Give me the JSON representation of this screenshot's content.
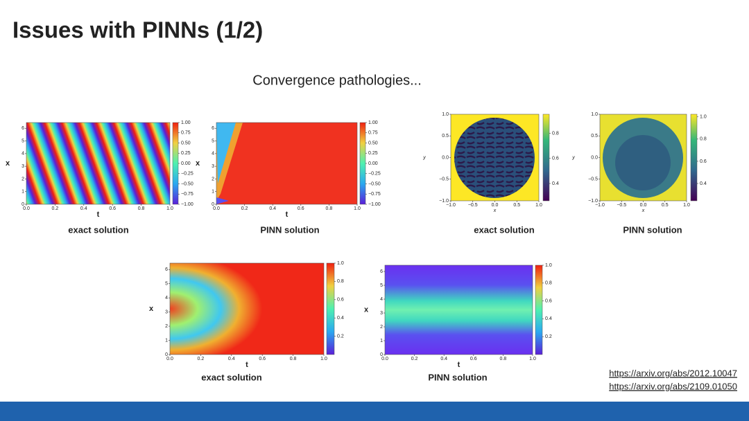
{
  "header": {
    "title": "Issues with PINNs (1/2)",
    "subtitle": "Convergence pathologies..."
  },
  "panels": [
    {
      "caption": "exact solution",
      "xlabel": "t",
      "ylabel": "x",
      "xticks": [
        "0.0",
        "0.2",
        "0.4",
        "0.6",
        "0.8",
        "1.0"
      ],
      "yticks": [
        "0",
        "1",
        "2",
        "3",
        "4",
        "5",
        "6"
      ],
      "cbticks": [
        "−1.00",
        "−0.75",
        "−0.50",
        "−0.25",
        "0.00",
        "0.25",
        "0.50",
        "0.75",
        "1.00"
      ]
    },
    {
      "caption": "PINN solution",
      "xlabel": "t",
      "ylabel": "x",
      "xticks": [
        "0.0",
        "0.2",
        "0.4",
        "0.6",
        "0.8",
        "1.0"
      ],
      "yticks": [
        "0",
        "1",
        "2",
        "3",
        "4",
        "5",
        "6"
      ],
      "cbticks": [
        "−1.00",
        "−0.75",
        "−0.50",
        "−0.25",
        "0.00",
        "0.25",
        "0.50",
        "0.75",
        "1.00"
      ]
    },
    {
      "caption": "exact solution",
      "xlabel": "x",
      "ylabel": "y",
      "xticks": [
        "−1.0",
        "−0.5",
        "0.0",
        "0.5",
        "1.0"
      ],
      "yticks": [
        "−1.0",
        "−0.5",
        "0.0",
        "0.5",
        "1.0"
      ],
      "cbticks": [
        "0.4",
        "0.6",
        "0.8"
      ]
    },
    {
      "caption": "PINN solution",
      "xlabel": "x",
      "ylabel": "y",
      "xticks": [
        "−1.0",
        "−0.5",
        "0.0",
        "0.5",
        "1.0"
      ],
      "yticks": [
        "−1.0",
        "−0.5",
        "0.0",
        "0.5",
        "1.0"
      ],
      "cbticks": [
        "0.4",
        "0.6",
        "0.8",
        "1.0"
      ]
    },
    {
      "caption": "exact solution",
      "xlabel": "t",
      "ylabel": "x",
      "xticks": [
        "0.0",
        "0.2",
        "0.4",
        "0.6",
        "0.8",
        "1.0"
      ],
      "yticks": [
        "0",
        "1",
        "2",
        "3",
        "4",
        "5",
        "6"
      ],
      "cbticks": [
        "0.2",
        "0.4",
        "0.6",
        "0.8",
        "1.0"
      ]
    },
    {
      "caption": "PINN solution",
      "xlabel": "t",
      "ylabel": "x",
      "xticks": [
        "0.0",
        "0.2",
        "0.4",
        "0.6",
        "0.8",
        "1.0"
      ],
      "yticks": [
        "0",
        "1",
        "2",
        "3",
        "4",
        "5",
        "6"
      ],
      "cbticks": [
        "0.2",
        "0.4",
        "0.6",
        "0.8",
        "1.0"
      ]
    }
  ],
  "links": [
    "https://arxiv.org/abs/2012.10047",
    "https://arxiv.org/abs/2109.01050"
  ]
}
